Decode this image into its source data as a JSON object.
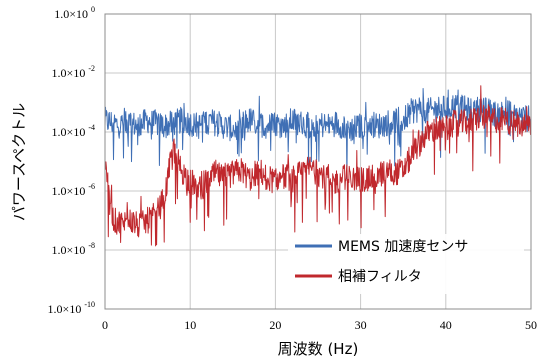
{
  "chart_data": {
    "type": "line",
    "xlabel": "周波数 (Hz)",
    "ylabel": "パワースペクトル",
    "xlim": [
      0,
      50
    ],
    "ylim_log10": [
      -10,
      0
    ],
    "y_scale": "log",
    "x_ticks": [
      "0",
      "10",
      "20",
      "30",
      "40",
      "50"
    ],
    "y_ticks": [
      {
        "mantissa": "1.0×10",
        "exp": "0"
      },
      {
        "mantissa": "1.0×10",
        "exp": "-2"
      },
      {
        "mantissa": "1.0×10",
        "exp": "-4"
      },
      {
        "mantissa": "1.0×10",
        "exp": "-6"
      },
      {
        "mantissa": "1.0×10",
        "exp": "-8"
      },
      {
        "mantissa": "1.0×10",
        "exp": "-10"
      }
    ],
    "grid": true,
    "legend_position": "bottom-right",
    "series": [
      {
        "name": "MEMS 加速度センサ",
        "color": "#3f6fb5",
        "x": [
          0,
          1,
          2,
          3,
          4,
          5,
          6,
          7,
          8,
          9,
          10,
          11,
          12,
          13,
          14,
          15,
          16,
          17,
          18,
          19,
          20,
          21,
          22,
          23,
          24,
          25,
          26,
          27,
          28,
          29,
          30,
          31,
          32,
          33,
          34,
          35,
          36,
          37,
          38,
          39,
          40,
          41,
          42,
          43,
          44,
          45,
          46,
          47,
          48,
          49,
          50
        ],
        "log10y": [
          -3.6,
          -3.7,
          -3.8,
          -3.7,
          -3.8,
          -3.6,
          -3.7,
          -3.8,
          -3.7,
          -3.6,
          -3.7,
          -3.8,
          -3.6,
          -3.7,
          -3.8,
          -3.9,
          -3.7,
          -3.6,
          -3.7,
          -3.8,
          -3.7,
          -3.8,
          -3.6,
          -3.7,
          -3.8,
          -3.7,
          -3.8,
          -3.7,
          -3.8,
          -3.9,
          -3.8,
          -3.7,
          -3.8,
          -3.7,
          -3.6,
          -3.6,
          -3.3,
          -3.2,
          -3.3,
          -3.2,
          -3.2,
          -3.1,
          -3.2,
          -3.3,
          -3.2,
          -3.3,
          -3.4,
          -3.3,
          -3.4,
          -3.5,
          -3.6
        ]
      },
      {
        "name": "相補フィルタ",
        "color": "#c0282d",
        "x": [
          0,
          1,
          2,
          3,
          4,
          5,
          6,
          7,
          8,
          9,
          10,
          11,
          12,
          13,
          14,
          15,
          16,
          17,
          18,
          19,
          20,
          21,
          22,
          23,
          24,
          25,
          26,
          27,
          28,
          29,
          30,
          31,
          32,
          33,
          34,
          35,
          36,
          37,
          38,
          39,
          40,
          41,
          42,
          43,
          44,
          45,
          46,
          47,
          48,
          49,
          50
        ],
        "log10y": [
          -5.0,
          -7.0,
          -7.1,
          -7.0,
          -7.2,
          -7.0,
          -6.8,
          -6.2,
          -4.5,
          -5.3,
          -5.7,
          -5.8,
          -5.7,
          -5.4,
          -5.6,
          -5.4,
          -5.3,
          -5.6,
          -5.3,
          -5.5,
          -5.7,
          -5.5,
          -5.6,
          -5.4,
          -5.2,
          -5.4,
          -5.5,
          -5.7,
          -5.5,
          -5.6,
          -5.6,
          -5.6,
          -5.5,
          -5.3,
          -5.4,
          -5.3,
          -4.8,
          -4.3,
          -4.0,
          -3.9,
          -3.9,
          -3.7,
          -3.7,
          -3.6,
          -3.5,
          -3.5,
          -3.6,
          -3.6,
          -3.7,
          -3.8,
          -3.8
        ]
      }
    ]
  }
}
